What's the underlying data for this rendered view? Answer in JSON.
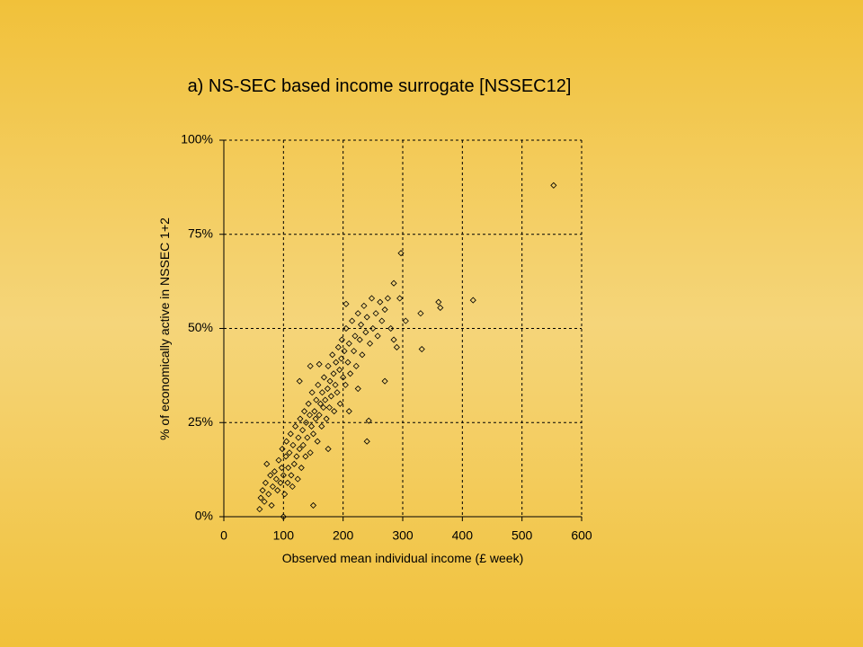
{
  "chart_data": {
    "type": "scatter",
    "title": "a) NS-SEC based income surrogate [NSSEC12]",
    "x_label": "Observed mean individual income (£ week)",
    "y_label": "% of economically active in NSSEC 1+2",
    "xlim": [
      0,
      600
    ],
    "xticks": [
      0,
      100,
      200,
      300,
      400,
      500,
      600
    ],
    "ylim": [
      0,
      100
    ],
    "yticks": [
      {
        "value": 0,
        "label": "0%"
      },
      {
        "value": 25,
        "label": "25%"
      },
      {
        "value": 50,
        "label": "50%"
      },
      {
        "value": 75,
        "label": "75%"
      },
      {
        "value": 100,
        "label": "100%"
      }
    ],
    "grid": true,
    "color": "#000000",
    "x": [
      62,
      65,
      68,
      70,
      72,
      75,
      78,
      80,
      82,
      85,
      88,
      90,
      92,
      95,
      97,
      98,
      100,
      102,
      104,
      105,
      107,
      108,
      110,
      112,
      113,
      115,
      116,
      118,
      120,
      122,
      124,
      125,
      127,
      128,
      130,
      132,
      133,
      135,
      137,
      138,
      140,
      142,
      144,
      145,
      147,
      148,
      150,
      152,
      154,
      155,
      157,
      158,
      160,
      162,
      164,
      165,
      167,
      168,
      170,
      172,
      174,
      175,
      177,
      178,
      180,
      182,
      184,
      185,
      187,
      188,
      190,
      192,
      194,
      195,
      197,
      198,
      200,
      202,
      204,
      205,
      208,
      210,
      212,
      215,
      218,
      220,
      222,
      225,
      228,
      230,
      232,
      235,
      238,
      240,
      245,
      248,
      250,
      255,
      258,
      262,
      265,
      270,
      275,
      280,
      285,
      290,
      295,
      553,
      297,
      418,
      360,
      363,
      330,
      332,
      305,
      285,
      240,
      243,
      270,
      100,
      60,
      150,
      127,
      160,
      205,
      145,
      210,
      225,
      175
    ],
    "y": [
      5,
      7,
      4,
      9,
      14,
      6,
      11,
      3,
      8,
      12,
      10,
      7,
      15,
      9,
      13,
      18,
      11,
      6,
      16,
      20,
      9,
      13,
      17,
      22,
      11,
      8,
      19,
      14,
      24,
      16,
      10,
      21,
      18,
      26,
      13,
      23,
      19,
      28,
      16,
      25,
      21,
      30,
      27,
      17,
      24,
      33,
      22,
      28,
      26,
      31,
      20,
      35,
      27,
      30,
      24,
      33,
      29,
      37,
      31,
      26,
      34,
      40,
      29,
      36,
      32,
      43,
      38,
      28,
      35,
      41,
      33,
      45,
      39,
      30,
      42,
      47,
      37,
      44,
      35,
      50,
      41,
      46,
      38,
      52,
      44,
      48,
      40,
      54,
      47,
      51,
      43,
      56,
      49,
      53,
      46,
      58,
      50,
      54,
      48,
      57,
      52,
      55,
      58,
      50,
      47,
      45,
      58,
      88,
      70,
      57.5,
      57,
      55.5,
      54,
      44.5,
      52,
      62,
      20,
      25.5,
      36,
      0,
      2,
      3,
      36,
      40.5,
      56.5,
      40,
      28,
      34,
      18
    ]
  }
}
